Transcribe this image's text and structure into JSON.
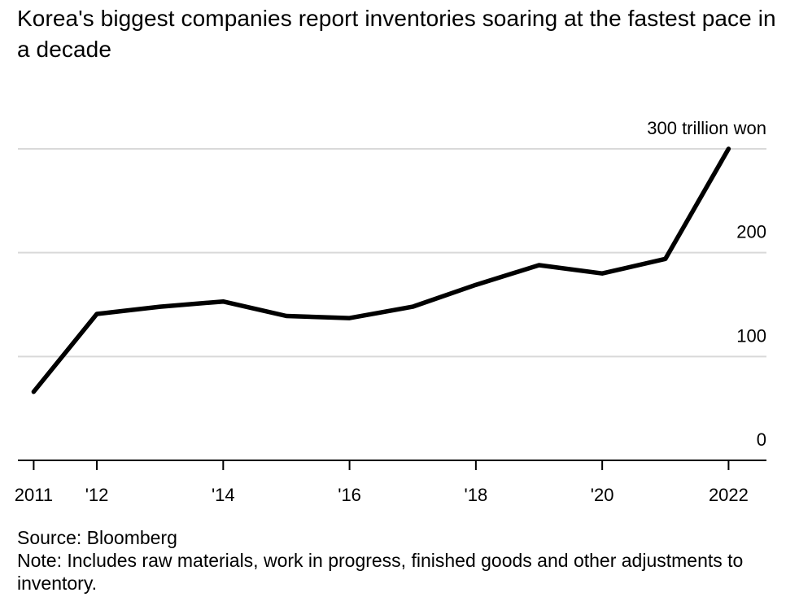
{
  "chart_data": {
    "type": "line",
    "title": "Korea's biggest companies report inventories soaring at the fastest pace in a decade",
    "x": [
      2011,
      2012,
      2013,
      2014,
      2015,
      2016,
      2017,
      2018,
      2019,
      2020,
      2021,
      2022
    ],
    "x_tick_values": [
      2011,
      2012,
      2014,
      2016,
      2018,
      2020,
      2022
    ],
    "x_tick_labels": [
      "2011",
      "'12",
      "'14",
      "'16",
      "'18",
      "'20",
      "2022"
    ],
    "series": [
      {
        "name": "Inventories",
        "values": [
          66,
          141,
          148,
          153,
          139,
          137,
          148,
          169,
          188,
          180,
          194,
          300
        ]
      }
    ],
    "y_tick_values": [
      0,
      100,
      200,
      300
    ],
    "y_tick_labels": [
      "0",
      "100",
      "200",
      "300 trillion won"
    ],
    "ylim": [
      0,
      300
    ],
    "xlim": [
      2010.75,
      2022.6
    ],
    "xlabel": "",
    "ylabel": "",
    "grid": true,
    "line_color": "#000000",
    "grid_color": "#d9d9d9"
  },
  "footer": {
    "source": "Source: Bloomberg",
    "note": "Note: Includes raw materials, work in progress, finished goods and other adjustments to inventory."
  }
}
